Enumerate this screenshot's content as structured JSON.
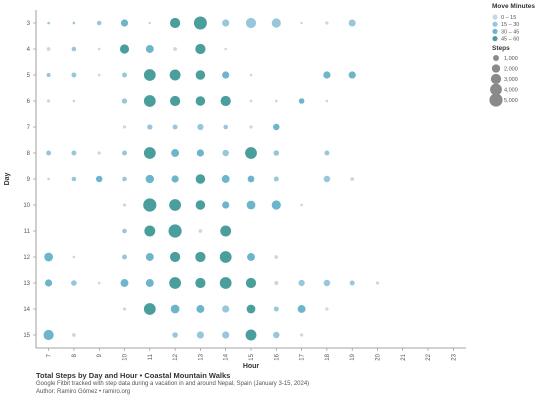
{
  "chart_data": {
    "type": "scatter",
    "title": "Total Steps by Day and Hour • Coastal Mountain Walks",
    "subtitle": "Google Fitbit tracked with step data during a vacation in and around Nepal, Spain (January 3-15, 2024)",
    "author": "Author: Ramiro Gómez • ramiro.org",
    "xlabel": "Hour",
    "ylabel": "Day",
    "x_ticks": [
      7,
      8,
      9,
      10,
      11,
      12,
      13,
      14,
      15,
      16,
      17,
      18,
      19,
      20,
      21,
      22,
      23
    ],
    "y_ticks": [
      3,
      4,
      5,
      6,
      7,
      8,
      9,
      10,
      11,
      12,
      13,
      14,
      15
    ],
    "legend_color": {
      "title": "Move Minutes",
      "items": [
        {
          "label": "0 – 15",
          "color": "#c6d9e4"
        },
        {
          "label": "15 – 30",
          "color": "#98c6db"
        },
        {
          "label": "30 – 45",
          "color": "#6cb5cb"
        },
        {
          "label": "45 – 60",
          "color": "#4a9e9c"
        }
      ]
    },
    "legend_size": {
      "title": "Steps",
      "items": [
        {
          "label": "1,000",
          "value": 1000
        },
        {
          "label": "2,000",
          "value": 2000
        },
        {
          "label": "3,000",
          "value": 3000
        },
        {
          "label": "4,000",
          "value": 4000
        },
        {
          "label": "5,000",
          "value": 5000
        }
      ]
    },
    "max_steps": 5000,
    "points": [
      {
        "day": 3,
        "hour": 7,
        "steps": 150,
        "move": 1
      },
      {
        "day": 3,
        "hour": 8,
        "steps": 200,
        "move": 1
      },
      {
        "day": 3,
        "hour": 9,
        "steps": 600,
        "move": 1
      },
      {
        "day": 3,
        "hour": 10,
        "steps": 1500,
        "move": 2
      },
      {
        "day": 3,
        "hour": 11,
        "steps": 150,
        "move": 0
      },
      {
        "day": 3,
        "hour": 12,
        "steps": 3000,
        "move": 3
      },
      {
        "day": 3,
        "hour": 13,
        "steps": 4800,
        "move": 3
      },
      {
        "day": 3,
        "hour": 14,
        "steps": 1500,
        "move": 1
      },
      {
        "day": 3,
        "hour": 15,
        "steps": 3000,
        "move": 1
      },
      {
        "day": 3,
        "hour": 16,
        "steps": 2400,
        "move": 1
      },
      {
        "day": 3,
        "hour": 17,
        "steps": 100,
        "move": 0
      },
      {
        "day": 3,
        "hour": 18,
        "steps": 300,
        "move": 0
      },
      {
        "day": 3,
        "hour": 19,
        "steps": 1400,
        "move": 1
      },
      {
        "day": 4,
        "hour": 7,
        "steps": 400,
        "move": 0
      },
      {
        "day": 4,
        "hour": 8,
        "steps": 600,
        "move": 1
      },
      {
        "day": 4,
        "hour": 9,
        "steps": 200,
        "move": 0
      },
      {
        "day": 4,
        "hour": 10,
        "steps": 2400,
        "move": 3
      },
      {
        "day": 4,
        "hour": 11,
        "steps": 1800,
        "move": 2
      },
      {
        "day": 4,
        "hour": 12,
        "steps": 400,
        "move": 0
      },
      {
        "day": 4,
        "hour": 13,
        "steps": 3000,
        "move": 3
      },
      {
        "day": 4,
        "hour": 14,
        "steps": 150,
        "move": 0
      },
      {
        "day": 5,
        "hour": 7,
        "steps": 500,
        "move": 1
      },
      {
        "day": 5,
        "hour": 8,
        "steps": 700,
        "move": 1
      },
      {
        "day": 5,
        "hour": 9,
        "steps": 200,
        "move": 0
      },
      {
        "day": 5,
        "hour": 10,
        "steps": 700,
        "move": 1
      },
      {
        "day": 5,
        "hour": 11,
        "steps": 4000,
        "move": 3
      },
      {
        "day": 5,
        "hour": 12,
        "steps": 3400,
        "move": 3
      },
      {
        "day": 5,
        "hour": 13,
        "steps": 2600,
        "move": 3
      },
      {
        "day": 5,
        "hour": 14,
        "steps": 1500,
        "move": 2
      },
      {
        "day": 5,
        "hour": 15,
        "steps": 100,
        "move": 0
      },
      {
        "day": 5,
        "hour": 18,
        "steps": 1500,
        "move": 2
      },
      {
        "day": 5,
        "hour": 19,
        "steps": 1500,
        "move": 2
      },
      {
        "day": 6,
        "hour": 7,
        "steps": 300,
        "move": 0
      },
      {
        "day": 6,
        "hour": 8,
        "steps": 200,
        "move": 0
      },
      {
        "day": 6,
        "hour": 10,
        "steps": 800,
        "move": 1
      },
      {
        "day": 6,
        "hour": 11,
        "steps": 4000,
        "move": 3
      },
      {
        "day": 6,
        "hour": 12,
        "steps": 3000,
        "move": 3
      },
      {
        "day": 6,
        "hour": 13,
        "steps": 2600,
        "move": 3
      },
      {
        "day": 6,
        "hour": 14,
        "steps": 3000,
        "move": 3
      },
      {
        "day": 6,
        "hour": 15,
        "steps": 200,
        "move": 0
      },
      {
        "day": 6,
        "hour": 16,
        "steps": 200,
        "move": 0
      },
      {
        "day": 6,
        "hour": 17,
        "steps": 900,
        "move": 2
      },
      {
        "day": 6,
        "hour": 18,
        "steps": 200,
        "move": 0
      },
      {
        "day": 7,
        "hour": 10,
        "steps": 300,
        "move": 0
      },
      {
        "day": 7,
        "hour": 11,
        "steps": 800,
        "move": 1
      },
      {
        "day": 7,
        "hour": 12,
        "steps": 700,
        "move": 1
      },
      {
        "day": 7,
        "hour": 13,
        "steps": 1100,
        "move": 1
      },
      {
        "day": 7,
        "hour": 14,
        "steps": 600,
        "move": 1
      },
      {
        "day": 7,
        "hour": 15,
        "steps": 300,
        "move": 0
      },
      {
        "day": 7,
        "hour": 16,
        "steps": 1200,
        "move": 2
      },
      {
        "day": 8,
        "hour": 7,
        "steps": 700,
        "move": 1
      },
      {
        "day": 8,
        "hour": 8,
        "steps": 700,
        "move": 1
      },
      {
        "day": 8,
        "hour": 9,
        "steps": 300,
        "move": 0
      },
      {
        "day": 8,
        "hour": 10,
        "steps": 700,
        "move": 1
      },
      {
        "day": 8,
        "hour": 11,
        "steps": 4000,
        "move": 3
      },
      {
        "day": 8,
        "hour": 12,
        "steps": 1800,
        "move": 2
      },
      {
        "day": 8,
        "hour": 13,
        "steps": 1500,
        "move": 2
      },
      {
        "day": 8,
        "hour": 14,
        "steps": 1200,
        "move": 1
      },
      {
        "day": 8,
        "hour": 15,
        "steps": 4000,
        "move": 3
      },
      {
        "day": 8,
        "hour": 16,
        "steps": 900,
        "move": 1
      },
      {
        "day": 8,
        "hour": 18,
        "steps": 700,
        "move": 1
      },
      {
        "day": 9,
        "hour": 7,
        "steps": 200,
        "move": 0
      },
      {
        "day": 9,
        "hour": 8,
        "steps": 600,
        "move": 1
      },
      {
        "day": 9,
        "hour": 9,
        "steps": 1200,
        "move": 2
      },
      {
        "day": 9,
        "hour": 10,
        "steps": 600,
        "move": 1
      },
      {
        "day": 9,
        "hour": 11,
        "steps": 2000,
        "move": 2
      },
      {
        "day": 9,
        "hour": 12,
        "steps": 1500,
        "move": 2
      },
      {
        "day": 9,
        "hour": 13,
        "steps": 2600,
        "move": 3
      },
      {
        "day": 9,
        "hour": 14,
        "steps": 1800,
        "move": 2
      },
      {
        "day": 9,
        "hour": 15,
        "steps": 1300,
        "move": 2
      },
      {
        "day": 9,
        "hour": 16,
        "steps": 700,
        "move": 1
      },
      {
        "day": 9,
        "hour": 18,
        "steps": 1200,
        "move": 1
      },
      {
        "day": 9,
        "hour": 19,
        "steps": 400,
        "move": 0
      },
      {
        "day": 10,
        "hour": 10,
        "steps": 300,
        "move": 0
      },
      {
        "day": 10,
        "hour": 11,
        "steps": 5000,
        "move": 3
      },
      {
        "day": 10,
        "hour": 12,
        "steps": 4000,
        "move": 3
      },
      {
        "day": 10,
        "hour": 13,
        "steps": 2600,
        "move": 3
      },
      {
        "day": 10,
        "hour": 14,
        "steps": 1500,
        "move": 2
      },
      {
        "day": 10,
        "hour": 15,
        "steps": 2200,
        "move": 2
      },
      {
        "day": 10,
        "hour": 16,
        "steps": 2400,
        "move": 2
      },
      {
        "day": 10,
        "hour": 17,
        "steps": 200,
        "move": 0
      },
      {
        "day": 11,
        "hour": 10,
        "steps": 600,
        "move": 1
      },
      {
        "day": 11,
        "hour": 11,
        "steps": 3400,
        "move": 3
      },
      {
        "day": 11,
        "hour": 12,
        "steps": 5000,
        "move": 3
      },
      {
        "day": 11,
        "hour": 13,
        "steps": 400,
        "move": 0
      },
      {
        "day": 11,
        "hour": 14,
        "steps": 3400,
        "move": 3
      },
      {
        "day": 12,
        "hour": 7,
        "steps": 2200,
        "move": 2
      },
      {
        "day": 12,
        "hour": 8,
        "steps": 200,
        "move": 0
      },
      {
        "day": 12,
        "hour": 10,
        "steps": 700,
        "move": 1
      },
      {
        "day": 12,
        "hour": 11,
        "steps": 1800,
        "move": 2
      },
      {
        "day": 12,
        "hour": 12,
        "steps": 3000,
        "move": 3
      },
      {
        "day": 12,
        "hour": 13,
        "steps": 3000,
        "move": 3
      },
      {
        "day": 12,
        "hour": 14,
        "steps": 4000,
        "move": 3
      },
      {
        "day": 12,
        "hour": 15,
        "steps": 1800,
        "move": 2
      },
      {
        "day": 12,
        "hour": 16,
        "steps": 400,
        "move": 0
      },
      {
        "day": 13,
        "hour": 7,
        "steps": 1500,
        "move": 2
      },
      {
        "day": 13,
        "hour": 8,
        "steps": 900,
        "move": 1
      },
      {
        "day": 13,
        "hour": 9,
        "steps": 200,
        "move": 0
      },
      {
        "day": 13,
        "hour": 10,
        "steps": 1800,
        "move": 2
      },
      {
        "day": 13,
        "hour": 11,
        "steps": 1800,
        "move": 2
      },
      {
        "day": 13,
        "hour": 12,
        "steps": 4000,
        "move": 3
      },
      {
        "day": 13,
        "hour": 13,
        "steps": 3000,
        "move": 3
      },
      {
        "day": 13,
        "hour": 14,
        "steps": 4000,
        "move": 3
      },
      {
        "day": 13,
        "hour": 15,
        "steps": 3000,
        "move": 3
      },
      {
        "day": 13,
        "hour": 16,
        "steps": 500,
        "move": 0
      },
      {
        "day": 13,
        "hour": 17,
        "steps": 1100,
        "move": 1
      },
      {
        "day": 13,
        "hour": 18,
        "steps": 1200,
        "move": 1
      },
      {
        "day": 13,
        "hour": 19,
        "steps": 700,
        "move": 1
      },
      {
        "day": 13,
        "hour": 20,
        "steps": 300,
        "move": 0
      },
      {
        "day": 14,
        "hour": 10,
        "steps": 300,
        "move": 0
      },
      {
        "day": 14,
        "hour": 11,
        "steps": 4000,
        "move": 3
      },
      {
        "day": 14,
        "hour": 12,
        "steps": 2200,
        "move": 2
      },
      {
        "day": 14,
        "hour": 13,
        "steps": 1800,
        "move": 2
      },
      {
        "day": 14,
        "hour": 14,
        "steps": 1500,
        "move": 1
      },
      {
        "day": 14,
        "hour": 15,
        "steps": 2200,
        "move": 3
      },
      {
        "day": 14,
        "hour": 16,
        "steps": 700,
        "move": 1
      },
      {
        "day": 14,
        "hour": 17,
        "steps": 1800,
        "move": 2
      },
      {
        "day": 14,
        "hour": 18,
        "steps": 300,
        "move": 0
      },
      {
        "day": 15,
        "hour": 7,
        "steps": 3000,
        "move": 2
      },
      {
        "day": 15,
        "hour": 8,
        "steps": 400,
        "move": 0
      },
      {
        "day": 15,
        "hour": 12,
        "steps": 900,
        "move": 1
      },
      {
        "day": 15,
        "hour": 13,
        "steps": 1500,
        "move": 1
      },
      {
        "day": 15,
        "hour": 14,
        "steps": 1500,
        "move": 1
      },
      {
        "day": 15,
        "hour": 15,
        "steps": 3400,
        "move": 3
      },
      {
        "day": 15,
        "hour": 16,
        "steps": 1200,
        "move": 1
      },
      {
        "day": 15,
        "hour": 17,
        "steps": 300,
        "move": 0
      }
    ]
  }
}
